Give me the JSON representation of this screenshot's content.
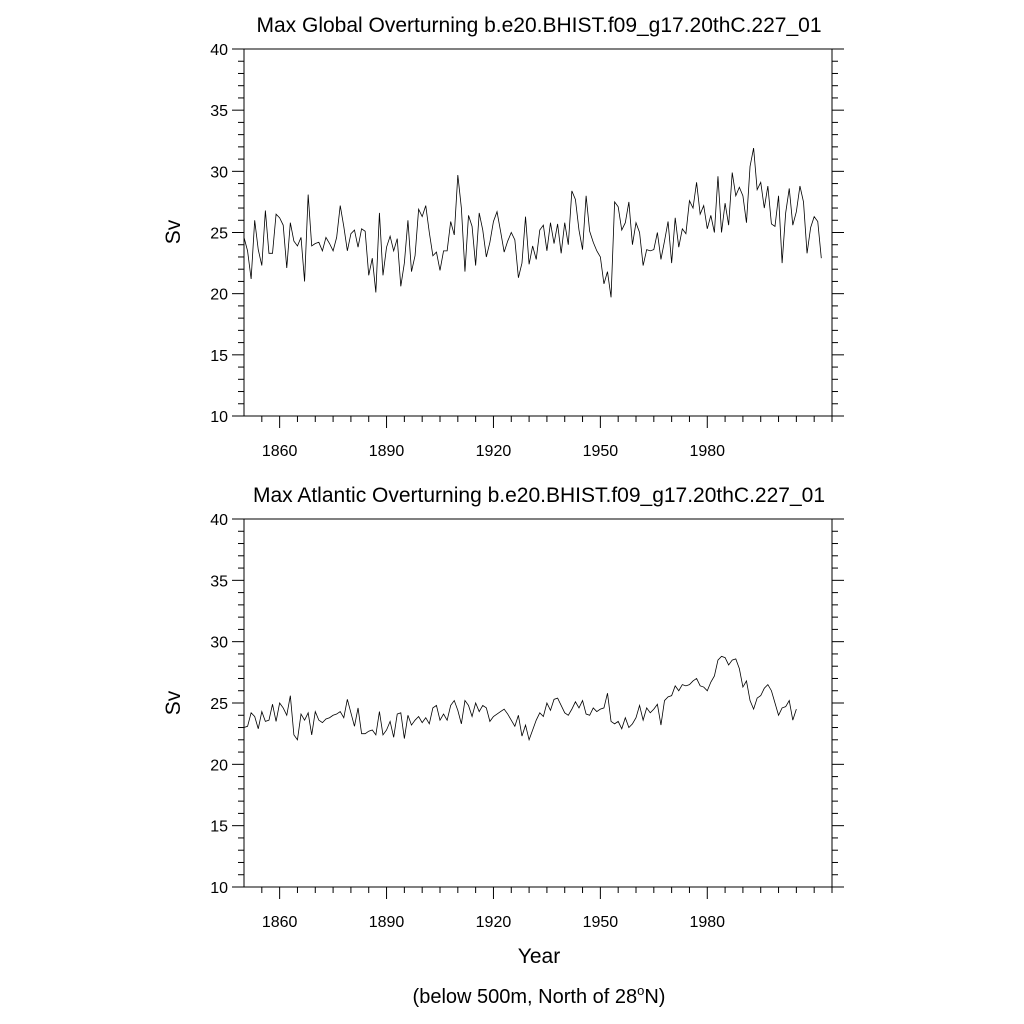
{
  "chart_data": [
    {
      "type": "line",
      "title": "Max Global Overturning b.e20.BHIST.f09_g17.20thC.227_01",
      "xlabel": "",
      "ylabel": "Sv",
      "xlim": [
        1850,
        2015
      ],
      "ylim": [
        10,
        40
      ],
      "xticks": [
        1860,
        1890,
        1920,
        1950,
        1980
      ],
      "yticks": [
        10,
        15,
        20,
        25,
        30,
        35,
        40
      ],
      "series": [
        {
          "name": "Max Global Overturning",
          "x_start": 1850,
          "values": [
            24.6,
            23.5,
            21.2,
            26.0,
            23.6,
            22.3,
            26.8,
            23.3,
            23.3,
            26.5,
            26.2,
            25.6,
            22.1,
            25.8,
            24.3,
            23.9,
            24.6,
            21.0,
            28.1,
            23.9,
            24.1,
            24.2,
            23.5,
            24.6,
            24.1,
            23.5,
            24.6,
            27.2,
            25.5,
            23.5,
            24.9,
            25.2,
            23.8,
            25.3,
            25.1,
            21.5,
            22.9,
            20.1,
            26.6,
            21.5,
            23.8,
            24.7,
            23.5,
            24.5,
            20.6,
            22.5,
            26.0,
            21.8,
            23.1,
            26.9,
            26.3,
            27.2,
            25.0,
            23.1,
            23.4,
            21.9,
            23.5,
            23.5,
            25.9,
            24.8,
            29.7,
            27.0,
            21.8,
            26.4,
            25.5,
            22.3,
            26.6,
            25.2,
            23.0,
            24.2,
            25.9,
            26.7,
            25.1,
            23.4,
            24.3,
            25.0,
            24.4,
            21.3,
            22.5,
            26.3,
            22.4,
            23.9,
            22.8,
            25.2,
            25.6,
            23.5,
            25.8,
            24.1,
            25.7,
            23.3,
            25.8,
            24.0,
            28.4,
            27.7,
            25.2,
            23.6,
            28.0,
            25.1,
            24.2,
            23.5,
            23.0,
            20.8,
            21.8,
            19.7,
            27.5,
            27.1,
            25.2,
            25.8,
            27.5,
            24.0,
            25.8,
            25.0,
            22.3,
            23.6,
            23.5,
            23.6,
            25.0,
            22.8,
            24.3,
            25.9,
            22.5,
            26.2,
            23.8,
            25.3,
            24.9,
            27.6,
            27.0,
            29.1,
            26.5,
            27.2,
            25.3,
            26.4,
            25.0,
            29.6,
            25.0,
            27.4,
            25.6,
            29.9,
            28.0,
            28.7,
            28.0,
            25.8,
            30.4,
            31.9,
            28.5,
            29.1,
            27.0,
            28.8,
            25.7,
            25.5,
            28.0,
            22.5,
            26.6,
            28.6,
            25.6,
            26.7,
            28.8,
            27.5,
            23.3,
            25.4,
            26.3,
            25.9,
            22.9
          ]
        }
      ]
    },
    {
      "type": "line",
      "title": "Max Atlantic Overturning b.e20.BHIST.f09_g17.20thC.227_01",
      "xlabel": "Year",
      "ylabel": "Sv",
      "xlim": [
        1850,
        2015
      ],
      "ylim": [
        10,
        40
      ],
      "xticks": [
        1860,
        1890,
        1920,
        1950,
        1980
      ],
      "yticks": [
        10,
        15,
        20,
        25,
        30,
        35,
        40
      ],
      "series": [
        {
          "name": "Max Atlantic Overturning",
          "x_start": 1850,
          "values": [
            23.0,
            23.1,
            24.2,
            23.9,
            22.9,
            24.3,
            23.5,
            23.6,
            24.9,
            23.5,
            25.0,
            24.6,
            24.0,
            25.6,
            22.4,
            22.0,
            24.1,
            23.6,
            24.2,
            22.4,
            24.3,
            23.6,
            23.4,
            23.7,
            23.8,
            24.0,
            24.1,
            24.3,
            23.8,
            25.3,
            24.2,
            23.1,
            24.6,
            22.5,
            22.5,
            22.7,
            22.8,
            22.4,
            24.3,
            22.4,
            22.8,
            23.5,
            22.2,
            24.1,
            24.2,
            22.1,
            24.0,
            23.2,
            23.6,
            23.9,
            23.4,
            23.8,
            23.3,
            24.6,
            24.8,
            23.6,
            24.1,
            23.6,
            24.8,
            25.2,
            24.4,
            23.3,
            25.2,
            24.8,
            23.9,
            25.0,
            24.3,
            24.8,
            24.6,
            23.5,
            23.9,
            24.1,
            24.3,
            24.5,
            24.1,
            23.6,
            23.1,
            24.0,
            22.3,
            23.2,
            22.0,
            22.8,
            23.6,
            24.2,
            23.9,
            25.0,
            24.4,
            25.3,
            25.4,
            24.8,
            24.2,
            24.0,
            24.5,
            25.1,
            24.6,
            25.2,
            24.1,
            24.0,
            24.6,
            24.3,
            24.5,
            24.6,
            25.8,
            23.5,
            23.3,
            23.5,
            22.9,
            23.8,
            23.0,
            23.3,
            23.8,
            24.8,
            23.6,
            24.6,
            24.2,
            24.5,
            24.9,
            23.2,
            25.2,
            25.5,
            25.6,
            26.4,
            26.0,
            26.5,
            26.4,
            26.5,
            26.8,
            27.0,
            26.4,
            26.3,
            26.0,
            26.7,
            27.2,
            28.5,
            28.8,
            28.7,
            28.1,
            28.5,
            28.6,
            27.8,
            26.3,
            26.8,
            25.2,
            24.5,
            25.4,
            25.6,
            26.2,
            26.5,
            26.0,
            25.0,
            24.0,
            24.6,
            24.7,
            25.2,
            23.6,
            24.5
          ]
        }
      ]
    }
  ],
  "footnote": {
    "prefix": "(below 500m, North of 28",
    "superscript": "o",
    "suffix": "N)"
  }
}
